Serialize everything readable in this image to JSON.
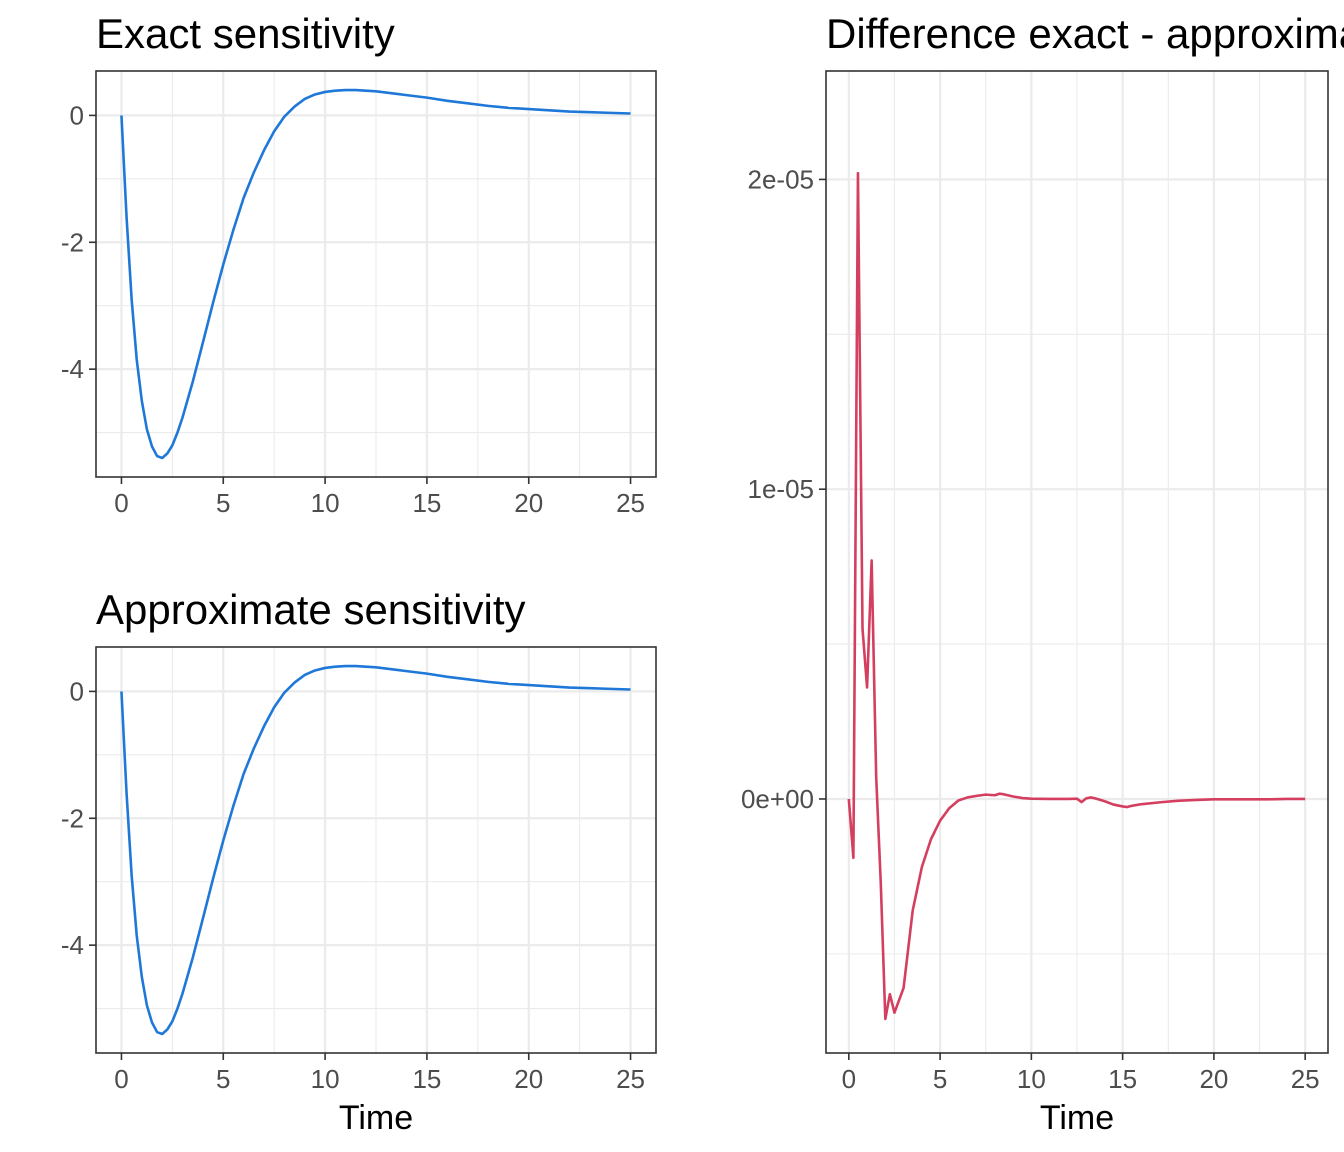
{
  "colors": {
    "exact": "#1F78D8",
    "approx": "#1F78D8",
    "diff": "#D43F5F"
  },
  "chart_data": [
    {
      "type": "line",
      "title": "Exact sensitivity",
      "xlabel": "",
      "ylabel": "",
      "xlim": [
        -1.25,
        26.25
      ],
      "ylim": [
        -5.7,
        0.7
      ],
      "x_ticks": [
        0,
        5,
        10,
        15,
        20,
        25
      ],
      "x_tick_labels": [
        "0",
        "5",
        "10",
        "15",
        "20",
        "25"
      ],
      "y_ticks": [
        0,
        -2,
        -4
      ],
      "y_tick_labels": [
        "0",
        "-2",
        "-4"
      ],
      "y_minor": [
        -1,
        -3,
        -5
      ],
      "grid": true,
      "series": [
        {
          "color": "#1F78D8",
          "x": [
            0,
            0.25,
            0.5,
            0.75,
            1,
            1.25,
            1.5,
            1.75,
            2,
            2.25,
            2.5,
            2.75,
            3,
            3.5,
            4,
            4.5,
            5,
            5.5,
            6,
            6.5,
            7,
            7.5,
            8,
            8.5,
            9,
            9.5,
            10,
            10.5,
            11,
            11.5,
            12,
            12.5,
            13,
            13.5,
            14,
            15,
            16,
            17,
            18,
            19,
            20,
            21,
            22,
            23,
            24,
            25
          ],
          "y": [
            0,
            -1.6,
            -2.9,
            -3.85,
            -4.5,
            -4.95,
            -5.22,
            -5.37,
            -5.4,
            -5.33,
            -5.2,
            -5.0,
            -4.76,
            -4.2,
            -3.58,
            -2.95,
            -2.35,
            -1.8,
            -1.3,
            -0.9,
            -0.55,
            -0.25,
            -0.02,
            0.14,
            0.26,
            0.33,
            0.37,
            0.39,
            0.4,
            0.4,
            0.39,
            0.38,
            0.36,
            0.34,
            0.32,
            0.28,
            0.23,
            0.19,
            0.15,
            0.12,
            0.1,
            0.08,
            0.06,
            0.05,
            0.04,
            0.03
          ]
        }
      ]
    },
    {
      "type": "line",
      "title": "Approximate sensitivity",
      "xlabel": "Time",
      "ylabel": "",
      "xlim": [
        -1.25,
        26.25
      ],
      "ylim": [
        -5.7,
        0.7
      ],
      "x_ticks": [
        0,
        5,
        10,
        15,
        20,
        25
      ],
      "x_tick_labels": [
        "0",
        "5",
        "10",
        "15",
        "20",
        "25"
      ],
      "y_ticks": [
        0,
        -2,
        -4
      ],
      "y_tick_labels": [
        "0",
        "-2",
        "-4"
      ],
      "y_minor": [
        -1,
        -3,
        -5
      ],
      "grid": true,
      "series": [
        {
          "color": "#1F78D8",
          "x": [
            0,
            0.25,
            0.5,
            0.75,
            1,
            1.25,
            1.5,
            1.75,
            2,
            2.25,
            2.5,
            2.75,
            3,
            3.5,
            4,
            4.5,
            5,
            5.5,
            6,
            6.5,
            7,
            7.5,
            8,
            8.5,
            9,
            9.5,
            10,
            10.5,
            11,
            11.5,
            12,
            12.5,
            13,
            13.5,
            14,
            15,
            16,
            17,
            18,
            19,
            20,
            21,
            22,
            23,
            24,
            25
          ],
          "y": [
            0,
            -1.6,
            -2.9,
            -3.85,
            -4.5,
            -4.95,
            -5.22,
            -5.37,
            -5.4,
            -5.33,
            -5.2,
            -5.0,
            -4.76,
            -4.2,
            -3.58,
            -2.95,
            -2.35,
            -1.8,
            -1.3,
            -0.9,
            -0.55,
            -0.25,
            -0.02,
            0.14,
            0.26,
            0.33,
            0.37,
            0.39,
            0.4,
            0.4,
            0.39,
            0.38,
            0.36,
            0.34,
            0.32,
            0.28,
            0.23,
            0.19,
            0.15,
            0.12,
            0.1,
            0.08,
            0.06,
            0.05,
            0.04,
            0.03
          ]
        }
      ]
    },
    {
      "type": "line",
      "title": "Difference exact - approximate",
      "xlabel": "Time",
      "ylabel": "",
      "xlim": [
        -1.25,
        26.25
      ],
      "ylim": [
        -8.2e-06,
        2.35e-05
      ],
      "x_ticks": [
        0,
        5,
        10,
        15,
        20,
        25
      ],
      "x_tick_labels": [
        "0",
        "5",
        "10",
        "15",
        "20",
        "25"
      ],
      "y_ticks": [
        2e-05,
        1e-05,
        0
      ],
      "y_tick_labels": [
        "2e-05",
        "1e-05",
        "0e+00"
      ],
      "y_minor": [
        1.5e-05,
        5e-06,
        -5e-06
      ],
      "grid": true,
      "series": [
        {
          "color": "#D43F5F",
          "x": [
            0,
            0.25,
            0.5,
            0.75,
            1,
            1.25,
            1.5,
            1.75,
            2,
            2.25,
            2.5,
            3,
            3.5,
            4,
            4.5,
            5,
            5.5,
            6,
            6.5,
            7,
            7.5,
            8,
            8.25,
            8.5,
            9,
            9.5,
            10,
            11,
            12,
            12.5,
            12.75,
            13,
            13.25,
            13.5,
            14,
            14.5,
            15,
            15.25,
            15.5,
            16,
            17,
            18,
            19,
            20,
            21,
            22,
            23,
            24,
            25
          ],
          "y": [
            0,
            -1.9e-06,
            2.02e-05,
            5.5e-06,
            3.6e-06,
            7.7e-06,
            7e-07,
            -2.7e-06,
            -7.1e-06,
            -6.3e-06,
            -6.9e-06,
            -6.1e-06,
            -3.6e-06,
            -2.2e-06,
            -1.3e-06,
            -7e-07,
            -3e-07,
            -5e-08,
            5e-08,
            1e-07,
            1.4e-07,
            1.2e-07,
            1.7e-07,
            1.5e-07,
            8e-08,
            3e-08,
            1e-08,
            0,
            0,
            1e-08,
            -1e-07,
            2e-08,
            5e-08,
            2e-08,
            -7e-08,
            -1.8e-07,
            -2.4e-07,
            -2.6e-07,
            -2.2e-07,
            -1.7e-07,
            -1.1e-07,
            -6e-08,
            -3e-08,
            -1e-08,
            -1e-08,
            -1e-08,
            -1e-08,
            0,
            0
          ]
        }
      ]
    }
  ]
}
